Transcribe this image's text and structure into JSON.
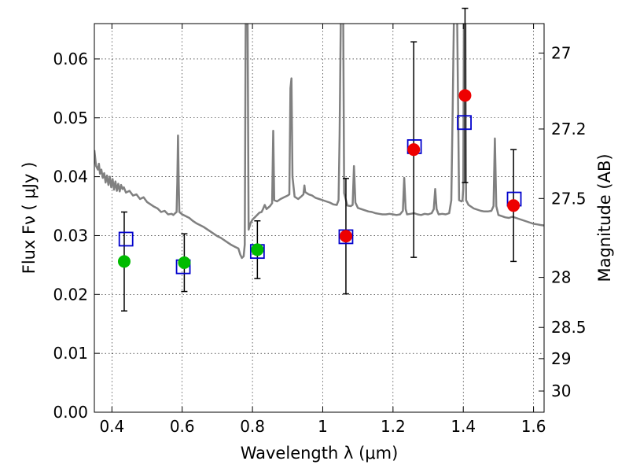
{
  "chart_data": {
    "type": "scatter",
    "xlabel": "Wavelength  λ (μm)",
    "ylabel_left": "Flux  Fν  ( μJy )",
    "ylabel_right": "Magnitude (AB)",
    "xlim": [
      0.35,
      1.63
    ],
    "ylim": [
      0.0,
      0.066
    ],
    "grid": true,
    "x_ticks": [
      {
        "value": 0.4,
        "label": "0.4"
      },
      {
        "value": 0.6,
        "label": "0.6"
      },
      {
        "value": 0.8,
        "label": "0.8"
      },
      {
        "value": 1.0,
        "label": "1"
      },
      {
        "value": 1.2,
        "label": "1.2"
      },
      {
        "value": 1.4,
        "label": "1.4"
      },
      {
        "value": 1.6,
        "label": "1.6"
      }
    ],
    "y_ticks": [
      {
        "value": 0.0,
        "label": "0.00"
      },
      {
        "value": 0.01,
        "label": "0.01"
      },
      {
        "value": 0.02,
        "label": "0.02"
      },
      {
        "value": 0.03,
        "label": "0.03"
      },
      {
        "value": 0.04,
        "label": "0.04"
      },
      {
        "value": 0.05,
        "label": "0.05"
      },
      {
        "value": 0.06,
        "label": "0.06"
      }
    ],
    "right_ticks": [
      {
        "flux": 0.061,
        "label": "27"
      },
      {
        "flux": 0.0481,
        "label": "27.2"
      },
      {
        "flux": 0.0363,
        "label": "27.5"
      },
      {
        "flux": 0.0229,
        "label": "28"
      },
      {
        "flux": 0.0144,
        "label": "28.5"
      },
      {
        "flux": 0.0091,
        "label": "29"
      },
      {
        "flux": 0.0036,
        "label": "30"
      }
    ],
    "series": [
      {
        "kind": "line",
        "color": "#808080",
        "points": [
          [
            0.35,
            0.0445
          ],
          [
            0.355,
            0.0418
          ],
          [
            0.36,
            0.0412
          ],
          [
            0.363,
            0.0422
          ],
          [
            0.366,
            0.0405
          ],
          [
            0.37,
            0.0412
          ],
          [
            0.374,
            0.0398
          ],
          [
            0.378,
            0.0406
          ],
          [
            0.382,
            0.039
          ],
          [
            0.386,
            0.0402
          ],
          [
            0.39,
            0.0386
          ],
          [
            0.394,
            0.04
          ],
          [
            0.398,
            0.0382
          ],
          [
            0.402,
            0.0396
          ],
          [
            0.406,
            0.0378
          ],
          [
            0.41,
            0.0392
          ],
          [
            0.414,
            0.0376
          ],
          [
            0.418,
            0.0388
          ],
          [
            0.422,
            0.0375
          ],
          [
            0.426,
            0.0386
          ],
          [
            0.43,
            0.0379
          ],
          [
            0.434,
            0.0382
          ],
          [
            0.44,
            0.0373
          ],
          [
            0.45,
            0.0376
          ],
          [
            0.46,
            0.0368
          ],
          [
            0.47,
            0.037
          ],
          [
            0.48,
            0.0362
          ],
          [
            0.49,
            0.0365
          ],
          [
            0.5,
            0.0357
          ],
          [
            0.51,
            0.0353
          ],
          [
            0.52,
            0.0349
          ],
          [
            0.53,
            0.0346
          ],
          [
            0.54,
            0.034
          ],
          [
            0.55,
            0.0342
          ],
          [
            0.56,
            0.0336
          ],
          [
            0.57,
            0.0337
          ],
          [
            0.575,
            0.0335
          ],
          [
            0.58,
            0.0338
          ],
          [
            0.584,
            0.034
          ],
          [
            0.586,
            0.039
          ],
          [
            0.588,
            0.047
          ],
          [
            0.59,
            0.039
          ],
          [
            0.592,
            0.034
          ],
          [
            0.6,
            0.0336
          ],
          [
            0.61,
            0.0333
          ],
          [
            0.62,
            0.033
          ],
          [
            0.63,
            0.0325
          ],
          [
            0.64,
            0.0321
          ],
          [
            0.65,
            0.0318
          ],
          [
            0.66,
            0.0315
          ],
          [
            0.67,
            0.0311
          ],
          [
            0.68,
            0.0307
          ],
          [
            0.69,
            0.0303
          ],
          [
            0.7,
            0.0299
          ],
          [
            0.71,
            0.0296
          ],
          [
            0.72,
            0.0292
          ],
          [
            0.73,
            0.0288
          ],
          [
            0.74,
            0.0284
          ],
          [
            0.75,
            0.0281
          ],
          [
            0.76,
            0.0278
          ],
          [
            0.765,
            0.0268
          ],
          [
            0.77,
            0.0262
          ],
          [
            0.775,
            0.0265
          ],
          [
            0.778,
            0.0285
          ],
          [
            0.781,
            0.07
          ],
          [
            0.786,
            0.07
          ],
          [
            0.789,
            0.031
          ],
          [
            0.795,
            0.0322
          ],
          [
            0.8,
            0.0327
          ],
          [
            0.81,
            0.0333
          ],
          [
            0.82,
            0.0339
          ],
          [
            0.826,
            0.034
          ],
          [
            0.83,
            0.0345
          ],
          [
            0.835,
            0.0352
          ],
          [
            0.84,
            0.0345
          ],
          [
            0.85,
            0.035
          ],
          [
            0.856,
            0.0355
          ],
          [
            0.859,
            0.0478
          ],
          [
            0.862,
            0.036
          ],
          [
            0.87,
            0.0358
          ],
          [
            0.88,
            0.0362
          ],
          [
            0.89,
            0.0365
          ],
          [
            0.9,
            0.0368
          ],
          [
            0.905,
            0.037
          ],
          [
            0.908,
            0.055
          ],
          [
            0.911,
            0.0567
          ],
          [
            0.914,
            0.04
          ],
          [
            0.92,
            0.0366
          ],
          [
            0.93,
            0.0362
          ],
          [
            0.94,
            0.0367
          ],
          [
            0.945,
            0.037
          ],
          [
            0.948,
            0.0385
          ],
          [
            0.95,
            0.0374
          ],
          [
            0.96,
            0.037
          ],
          [
            0.97,
            0.0368
          ],
          [
            0.98,
            0.0364
          ],
          [
            0.99,
            0.0362
          ],
          [
            1.0,
            0.036
          ],
          [
            1.01,
            0.0358
          ],
          [
            1.02,
            0.0356
          ],
          [
            1.03,
            0.0353
          ],
          [
            1.04,
            0.0352
          ],
          [
            1.045,
            0.036
          ],
          [
            1.048,
            0.0468
          ],
          [
            1.052,
            0.07
          ],
          [
            1.058,
            0.07
          ],
          [
            1.061,
            0.0372
          ],
          [
            1.07,
            0.0351
          ],
          [
            1.08,
            0.035
          ],
          [
            1.085,
            0.0352
          ],
          [
            1.089,
            0.0418
          ],
          [
            1.093,
            0.0356
          ],
          [
            1.1,
            0.0347
          ],
          [
            1.11,
            0.0345
          ],
          [
            1.12,
            0.0343
          ],
          [
            1.13,
            0.0341
          ],
          [
            1.14,
            0.034
          ],
          [
            1.15,
            0.0338
          ],
          [
            1.16,
            0.0337
          ],
          [
            1.17,
            0.0336
          ],
          [
            1.18,
            0.0336
          ],
          [
            1.19,
            0.0337
          ],
          [
            1.2,
            0.0336
          ],
          [
            1.21,
            0.0335
          ],
          [
            1.22,
            0.0336
          ],
          [
            1.228,
            0.0342
          ],
          [
            1.232,
            0.0398
          ],
          [
            1.236,
            0.0345
          ],
          [
            1.24,
            0.0336
          ],
          [
            1.25,
            0.0337
          ],
          [
            1.26,
            0.0338
          ],
          [
            1.27,
            0.0336
          ],
          [
            1.28,
            0.0335
          ],
          [
            1.29,
            0.0337
          ],
          [
            1.3,
            0.0336
          ],
          [
            1.31,
            0.0338
          ],
          [
            1.316,
            0.0345
          ],
          [
            1.32,
            0.0379
          ],
          [
            1.324,
            0.0345
          ],
          [
            1.33,
            0.0336
          ],
          [
            1.34,
            0.0337
          ],
          [
            1.35,
            0.0336
          ],
          [
            1.36,
            0.0338
          ],
          [
            1.366,
            0.036
          ],
          [
            1.37,
            0.052
          ],
          [
            1.374,
            0.07
          ],
          [
            1.382,
            0.07
          ],
          [
            1.388,
            0.036
          ],
          [
            1.395,
            0.0358
          ],
          [
            1.398,
            0.036
          ],
          [
            1.4,
            0.038
          ],
          [
            1.402,
            0.07
          ],
          [
            1.406,
            0.07
          ],
          [
            1.408,
            0.036
          ],
          [
            1.415,
            0.0352
          ],
          [
            1.43,
            0.0346
          ],
          [
            1.45,
            0.0342
          ],
          [
            1.46,
            0.0341
          ],
          [
            1.47,
            0.0341
          ],
          [
            1.48,
            0.0342
          ],
          [
            1.486,
            0.035
          ],
          [
            1.49,
            0.0465
          ],
          [
            1.494,
            0.035
          ],
          [
            1.5,
            0.0335
          ],
          [
            1.51,
            0.0333
          ],
          [
            1.52,
            0.0331
          ],
          [
            1.53,
            0.033
          ],
          [
            1.54,
            0.0332
          ],
          [
            1.55,
            0.033
          ],
          [
            1.56,
            0.0328
          ],
          [
            1.57,
            0.0326
          ],
          [
            1.58,
            0.0324
          ],
          [
            1.59,
            0.0322
          ],
          [
            1.6,
            0.032
          ],
          [
            1.61,
            0.0319
          ],
          [
            1.62,
            0.0318
          ],
          [
            1.63,
            0.0317
          ]
        ]
      },
      {
        "kind": "errorbar",
        "color": "#000000",
        "points": [
          {
            "x": 0.435,
            "y": 0.0256,
            "err": 0.0084
          },
          {
            "x": 0.606,
            "y": 0.0254,
            "err": 0.0049
          },
          {
            "x": 0.814,
            "y": 0.0276,
            "err": 0.0049
          },
          {
            "x": 1.066,
            "y": 0.0299,
            "err": 0.0098
          },
          {
            "x": 1.259,
            "y": 0.0446,
            "err": 0.0183
          },
          {
            "x": 1.405,
            "y": 0.0538,
            "err": 0.0148
          },
          {
            "x": 1.543,
            "y": 0.0351,
            "err": 0.0095
          }
        ]
      },
      {
        "kind": "square",
        "color": "#0000cc",
        "points": [
          {
            "x": 0.44,
            "y": 0.0294
          },
          {
            "x": 0.603,
            "y": 0.0247
          },
          {
            "x": 0.814,
            "y": 0.0273
          },
          {
            "x": 1.066,
            "y": 0.0298
          },
          {
            "x": 1.261,
            "y": 0.0451
          },
          {
            "x": 1.403,
            "y": 0.0492
          },
          {
            "x": 1.545,
            "y": 0.0362
          }
        ]
      },
      {
        "kind": "circle",
        "color": "#00bb00",
        "points": [
          {
            "x": 0.435,
            "y": 0.0256
          },
          {
            "x": 0.606,
            "y": 0.0254
          },
          {
            "x": 0.814,
            "y": 0.0276
          }
        ]
      },
      {
        "kind": "circle",
        "color": "#ee0000",
        "points": [
          {
            "x": 1.066,
            "y": 0.0299
          },
          {
            "x": 1.259,
            "y": 0.0446
          },
          {
            "x": 1.405,
            "y": 0.0538
          },
          {
            "x": 1.543,
            "y": 0.0351
          }
        ]
      }
    ]
  }
}
